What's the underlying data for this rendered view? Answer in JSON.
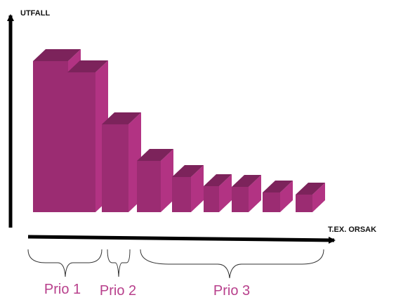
{
  "chart_data": {
    "type": "bar3d",
    "y_label": "UTFALL",
    "x_label": "T.EX. ORSAK",
    "categories": [
      null,
      null,
      null,
      null,
      null,
      null,
      null,
      null,
      null
    ],
    "values": [
      215,
      199,
      125,
      73,
      50,
      37,
      36,
      28,
      25
    ],
    "color": "#9b2c72",
    "ylim": [
      0,
      230
    ],
    "groups": [
      "Prio 1",
      "Prio 2",
      "Prio 3"
    ]
  }
}
